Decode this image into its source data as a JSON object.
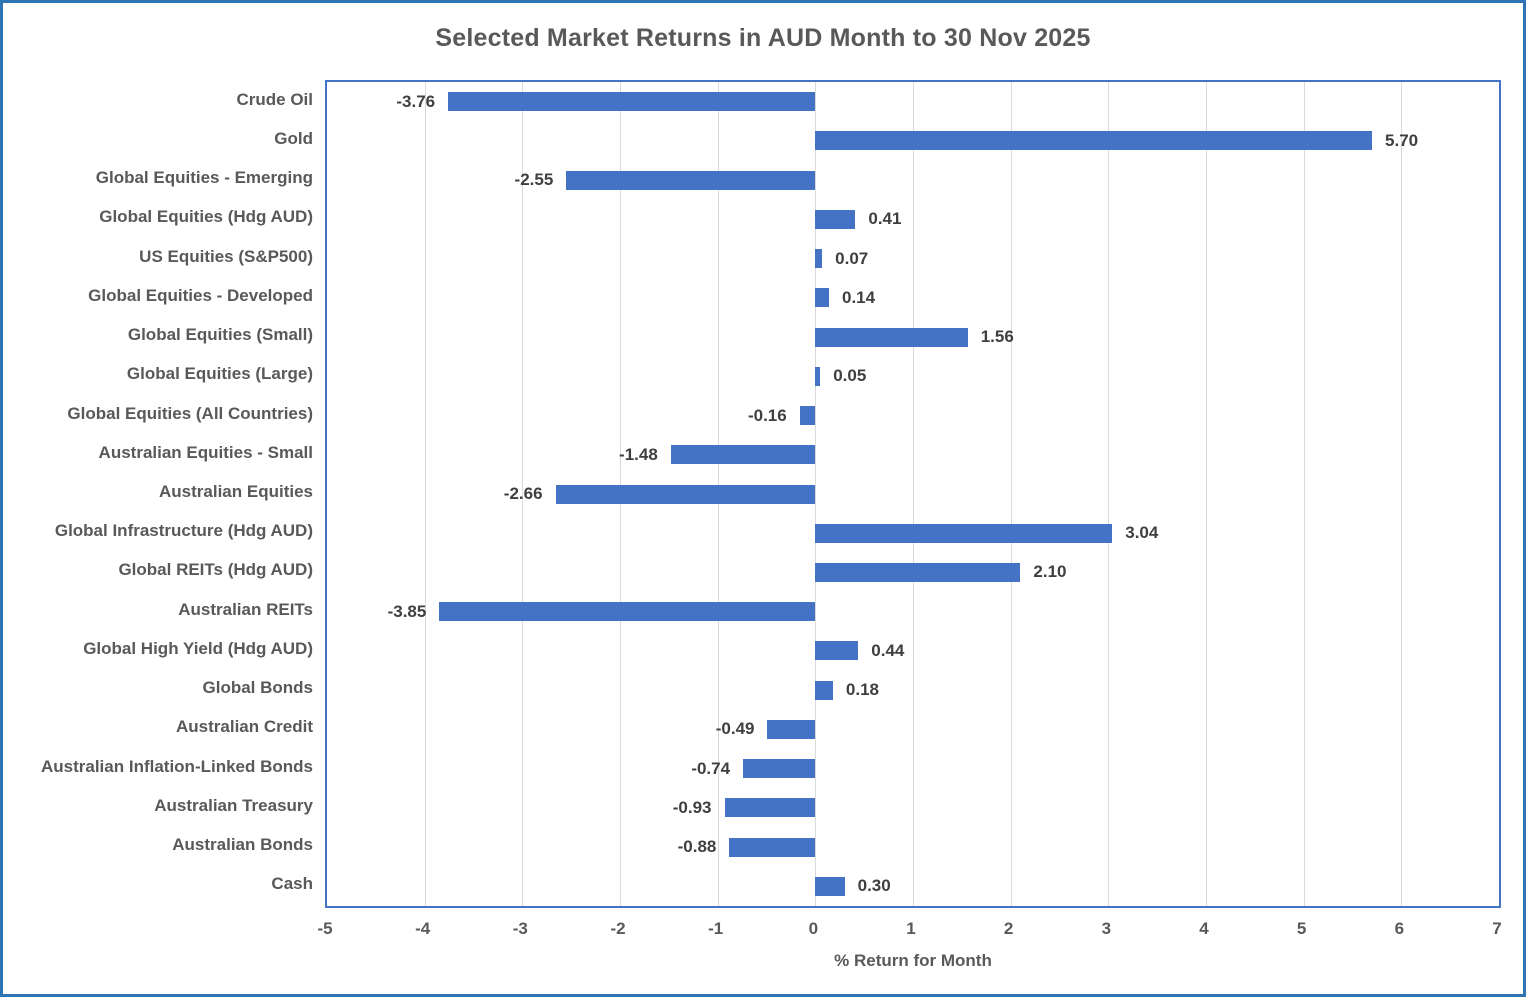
{
  "title": "Selected Market Returns in AUD Month to 30 Nov 2025",
  "colors": {
    "bar": "#4472C4",
    "plot_border": "#4472C4",
    "outer_border": "#2E75B6",
    "gridline": "#D9D9D9",
    "category_text": "#595959",
    "value_text": "#3F3F3F"
  },
  "chart_data": {
    "type": "bar",
    "orientation": "horizontal",
    "title": "Selected Market Returns in AUD Month to 30 Nov 2025",
    "xlabel": "% Return for Month",
    "xlim": [
      -5,
      7
    ],
    "xticks": [
      -5,
      -4,
      -3,
      -2,
      -1,
      0,
      1,
      2,
      3,
      4,
      5,
      6,
      7
    ],
    "xtick_labels": [
      "-5",
      "-4",
      "-3",
      "-2",
      "-1",
      "0",
      "1",
      "2",
      "3",
      "4",
      "5",
      "6",
      "7"
    ],
    "grid": true,
    "legend": false,
    "categories": [
      "Crude Oil",
      "Gold",
      "Global Equities - Emerging",
      "Global Equities (Hdg AUD)",
      "US Equities (S&P500)",
      "Global Equities - Developed",
      "Global Equities (Small)",
      "Global Equities (Large)",
      "Global Equities (All Countries)",
      "Australian Equities - Small",
      "Australian Equities",
      "Global Infrastructure (Hdg AUD)",
      "Global REITs (Hdg AUD)",
      "Australian REITs",
      "Global High Yield (Hdg AUD)",
      "Global Bonds",
      "Australian Credit",
      "Australian Inflation-Linked Bonds",
      "Australian Treasury",
      "Australian Bonds",
      "Cash"
    ],
    "values": [
      -3.76,
      5.7,
      -2.55,
      0.41,
      0.07,
      0.14,
      1.56,
      0.05,
      -0.16,
      -1.48,
      -2.66,
      3.04,
      2.1,
      -3.85,
      0.44,
      0.18,
      -0.49,
      -0.74,
      -0.93,
      -0.88,
      0.3
    ],
    "value_labels": [
      "-3.76",
      "5.70",
      "-2.55",
      "0.41",
      "0.07",
      "0.14",
      "1.56",
      "0.05",
      "-0.16",
      "-1.48",
      "-2.66",
      "3.04",
      "2.10",
      "-3.85",
      "0.44",
      "0.18",
      "-0.49",
      "-0.74",
      "-0.93",
      "-0.88",
      "0.30"
    ]
  }
}
